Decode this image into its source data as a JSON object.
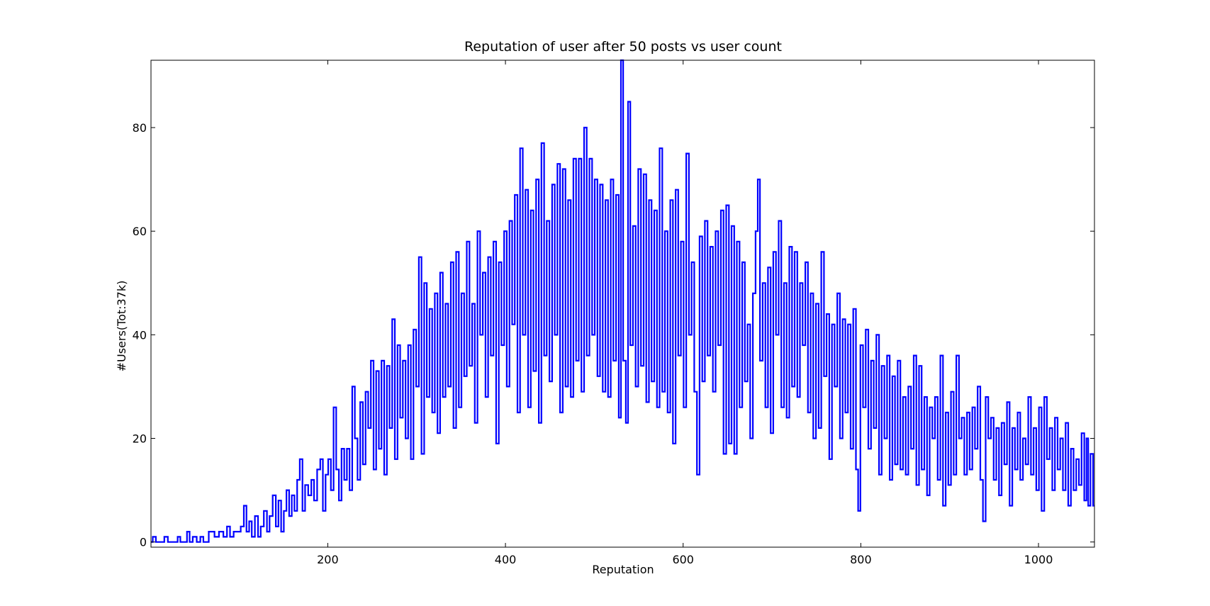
{
  "chart_data": {
    "type": "line",
    "title": "Reputation of user after 50 posts vs user count",
    "xlabel": "Reputation",
    "ylabel": "#Users(Tot:37k)",
    "xlim": [
      1,
      1063
    ],
    "ylim": [
      -1,
      93
    ],
    "xticks": [
      200,
      400,
      600,
      800,
      1000
    ],
    "yticks": [
      0,
      20,
      40,
      60,
      80
    ],
    "grid": false,
    "legend": "none",
    "color": "#0000ff",
    "drawstyle": "steps",
    "x_start": 1,
    "x_step": 1,
    "y_points": [
      [
        1,
        0
      ],
      [
        5,
        1
      ],
      [
        8,
        0
      ],
      [
        14,
        0
      ],
      [
        18,
        1
      ],
      [
        22,
        0
      ],
      [
        30,
        0
      ],
      [
        32,
        1
      ],
      [
        36,
        0
      ],
      [
        40,
        0
      ],
      [
        43,
        2
      ],
      [
        46,
        0
      ],
      [
        50,
        1
      ],
      [
        55,
        0
      ],
      [
        58,
        1
      ],
      [
        62,
        0
      ],
      [
        70,
        2
      ],
      [
        75,
        1
      ],
      [
        80,
        2
      ],
      [
        85,
        1
      ],
      [
        88,
        3
      ],
      [
        92,
        1
      ],
      [
        96,
        2
      ],
      [
        100,
        2
      ],
      [
        104,
        3
      ],
      [
        107,
        7
      ],
      [
        110,
        2
      ],
      [
        113,
        4
      ],
      [
        116,
        1
      ],
      [
        120,
        5
      ],
      [
        123,
        1
      ],
      [
        126,
        3
      ],
      [
        130,
        6
      ],
      [
        133,
        2
      ],
      [
        136,
        5
      ],
      [
        140,
        9
      ],
      [
        143,
        3
      ],
      [
        146,
        8
      ],
      [
        149,
        2
      ],
      [
        152,
        6
      ],
      [
        155,
        10
      ],
      [
        158,
        5
      ],
      [
        161,
        9
      ],
      [
        164,
        6
      ],
      [
        167,
        12
      ],
      [
        170,
        16
      ],
      [
        173,
        6
      ],
      [
        176,
        11
      ],
      [
        180,
        9
      ],
      [
        183,
        12
      ],
      [
        186,
        8
      ],
      [
        190,
        14
      ],
      [
        193,
        16
      ],
      [
        196,
        6
      ],
      [
        199,
        13
      ],
      [
        202,
        16
      ],
      [
        205,
        10
      ],
      [
        208,
        26
      ],
      [
        211,
        14
      ],
      [
        214,
        8
      ],
      [
        217,
        18
      ],
      [
        220,
        12
      ],
      [
        223,
        18
      ],
      [
        226,
        10
      ],
      [
        229,
        30
      ],
      [
        232,
        20
      ],
      [
        235,
        12
      ],
      [
        238,
        27
      ],
      [
        241,
        15
      ],
      [
        244,
        29
      ],
      [
        247,
        22
      ],
      [
        250,
        35
      ],
      [
        253,
        14
      ],
      [
        256,
        33
      ],
      [
        259,
        18
      ],
      [
        262,
        35
      ],
      [
        265,
        13
      ],
      [
        268,
        34
      ],
      [
        271,
        22
      ],
      [
        274,
        43
      ],
      [
        277,
        16
      ],
      [
        280,
        38
      ],
      [
        283,
        24
      ],
      [
        286,
        35
      ],
      [
        289,
        20
      ],
      [
        292,
        38
      ],
      [
        295,
        16
      ],
      [
        298,
        41
      ],
      [
        301,
        30
      ],
      [
        304,
        55
      ],
      [
        307,
        17
      ],
      [
        310,
        50
      ],
      [
        313,
        28
      ],
      [
        316,
        45
      ],
      [
        319,
        25
      ],
      [
        322,
        48
      ],
      [
        325,
        21
      ],
      [
        328,
        52
      ],
      [
        331,
        28
      ],
      [
        334,
        46
      ],
      [
        337,
        30
      ],
      [
        340,
        54
      ],
      [
        343,
        22
      ],
      [
        346,
        56
      ],
      [
        349,
        26
      ],
      [
        352,
        48
      ],
      [
        355,
        32
      ],
      [
        358,
        58
      ],
      [
        361,
        34
      ],
      [
        364,
        46
      ],
      [
        367,
        23
      ],
      [
        370,
        60
      ],
      [
        373,
        40
      ],
      [
        376,
        52
      ],
      [
        379,
        28
      ],
      [
        382,
        55
      ],
      [
        385,
        36
      ],
      [
        388,
        58
      ],
      [
        391,
        19
      ],
      [
        394,
        54
      ],
      [
        397,
        38
      ],
      [
        400,
        60
      ],
      [
        403,
        30
      ],
      [
        406,
        62
      ],
      [
        409,
        42
      ],
      [
        412,
        67
      ],
      [
        415,
        25
      ],
      [
        418,
        76
      ],
      [
        421,
        40
      ],
      [
        424,
        68
      ],
      [
        427,
        26
      ],
      [
        430,
        64
      ],
      [
        433,
        33
      ],
      [
        436,
        70
      ],
      [
        439,
        23
      ],
      [
        442,
        77
      ],
      [
        445,
        36
      ],
      [
        448,
        62
      ],
      [
        451,
        31
      ],
      [
        454,
        69
      ],
      [
        457,
        40
      ],
      [
        460,
        73
      ],
      [
        463,
        25
      ],
      [
        466,
        72
      ],
      [
        469,
        30
      ],
      [
        472,
        66
      ],
      [
        475,
        28
      ],
      [
        478,
        74
      ],
      [
        481,
        35
      ],
      [
        484,
        74
      ],
      [
        487,
        29
      ],
      [
        490,
        80
      ],
      [
        493,
        36
      ],
      [
        496,
        74
      ],
      [
        499,
        40
      ],
      [
        502,
        70
      ],
      [
        505,
        32
      ],
      [
        508,
        69
      ],
      [
        511,
        29
      ],
      [
        514,
        66
      ],
      [
        517,
        28
      ],
      [
        520,
        70
      ],
      [
        523,
        35
      ],
      [
        526,
        67
      ],
      [
        529,
        24
      ],
      [
        531,
        93
      ],
      [
        534,
        35
      ],
      [
        537,
        23
      ],
      [
        539,
        85
      ],
      [
        542,
        38
      ],
      [
        545,
        61
      ],
      [
        548,
        30
      ],
      [
        551,
        72
      ],
      [
        554,
        34
      ],
      [
        557,
        71
      ],
      [
        560,
        27
      ],
      [
        563,
        66
      ],
      [
        566,
        31
      ],
      [
        569,
        64
      ],
      [
        572,
        26
      ],
      [
        575,
        76
      ],
      [
        578,
        29
      ],
      [
        581,
        60
      ],
      [
        584,
        25
      ],
      [
        587,
        66
      ],
      [
        590,
        19
      ],
      [
        593,
        68
      ],
      [
        596,
        36
      ],
      [
        599,
        58
      ],
      [
        602,
        26
      ],
      [
        605,
        75
      ],
      [
        608,
        40
      ],
      [
        611,
        54
      ],
      [
        614,
        29
      ],
      [
        617,
        13
      ],
      [
        620,
        59
      ],
      [
        623,
        31
      ],
      [
        626,
        62
      ],
      [
        629,
        36
      ],
      [
        632,
        57
      ],
      [
        635,
        29
      ],
      [
        638,
        60
      ],
      [
        641,
        38
      ],
      [
        644,
        64
      ],
      [
        647,
        17
      ],
      [
        650,
        65
      ],
      [
        653,
        19
      ],
      [
        656,
        61
      ],
      [
        659,
        17
      ],
      [
        662,
        58
      ],
      [
        665,
        26
      ],
      [
        668,
        54
      ],
      [
        671,
        31
      ],
      [
        674,
        42
      ],
      [
        677,
        20
      ],
      [
        680,
        48
      ],
      [
        683,
        60
      ],
      [
        685,
        70
      ],
      [
        688,
        35
      ],
      [
        691,
        50
      ],
      [
        694,
        26
      ],
      [
        697,
        53
      ],
      [
        700,
        21
      ],
      [
        703,
        56
      ],
      [
        706,
        40
      ],
      [
        709,
        62
      ],
      [
        712,
        26
      ],
      [
        715,
        50
      ],
      [
        718,
        24
      ],
      [
        721,
        57
      ],
      [
        724,
        30
      ],
      [
        727,
        56
      ],
      [
        730,
        28
      ],
      [
        733,
        50
      ],
      [
        736,
        38
      ],
      [
        739,
        54
      ],
      [
        742,
        25
      ],
      [
        745,
        48
      ],
      [
        748,
        20
      ],
      [
        751,
        46
      ],
      [
        754,
        22
      ],
      [
        757,
        56
      ],
      [
        760,
        32
      ],
      [
        763,
        44
      ],
      [
        766,
        16
      ],
      [
        769,
        42
      ],
      [
        772,
        30
      ],
      [
        775,
        48
      ],
      [
        778,
        20
      ],
      [
        781,
        43
      ],
      [
        784,
        25
      ],
      [
        787,
        42
      ],
      [
        790,
        18
      ],
      [
        793,
        45
      ],
      [
        796,
        14
      ],
      [
        798,
        6
      ],
      [
        801,
        38
      ],
      [
        804,
        26
      ],
      [
        807,
        41
      ],
      [
        810,
        18
      ],
      [
        813,
        35
      ],
      [
        816,
        22
      ],
      [
        819,
        40
      ],
      [
        822,
        13
      ],
      [
        825,
        34
      ],
      [
        828,
        20
      ],
      [
        831,
        36
      ],
      [
        834,
        12
      ],
      [
        837,
        32
      ],
      [
        840,
        15
      ],
      [
        843,
        35
      ],
      [
        846,
        14
      ],
      [
        849,
        28
      ],
      [
        852,
        13
      ],
      [
        855,
        30
      ],
      [
        858,
        18
      ],
      [
        861,
        36
      ],
      [
        864,
        11
      ],
      [
        867,
        34
      ],
      [
        870,
        14
      ],
      [
        873,
        28
      ],
      [
        876,
        9
      ],
      [
        879,
        26
      ],
      [
        882,
        20
      ],
      [
        885,
        28
      ],
      [
        888,
        12
      ],
      [
        891,
        36
      ],
      [
        894,
        7
      ],
      [
        897,
        25
      ],
      [
        900,
        11
      ],
      [
        903,
        29
      ],
      [
        906,
        13
      ],
      [
        909,
        36
      ],
      [
        912,
        20
      ],
      [
        915,
        24
      ],
      [
        918,
        13
      ],
      [
        921,
        25
      ],
      [
        924,
        14
      ],
      [
        927,
        26
      ],
      [
        930,
        18
      ],
      [
        933,
        30
      ],
      [
        936,
        12
      ],
      [
        939,
        4
      ],
      [
        942,
        28
      ],
      [
        945,
        20
      ],
      [
        948,
        24
      ],
      [
        951,
        12
      ],
      [
        954,
        22
      ],
      [
        957,
        9
      ],
      [
        960,
        23
      ],
      [
        963,
        15
      ],
      [
        966,
        27
      ],
      [
        969,
        7
      ],
      [
        972,
        22
      ],
      [
        975,
        14
      ],
      [
        978,
        25
      ],
      [
        981,
        12
      ],
      [
        984,
        20
      ],
      [
        987,
        15
      ],
      [
        990,
        28
      ],
      [
        993,
        13
      ],
      [
        996,
        22
      ],
      [
        999,
        10
      ],
      [
        1002,
        26
      ],
      [
        1005,
        6
      ],
      [
        1008,
        28
      ],
      [
        1011,
        16
      ],
      [
        1014,
        22
      ],
      [
        1017,
        10
      ],
      [
        1020,
        24
      ],
      [
        1023,
        14
      ],
      [
        1026,
        20
      ],
      [
        1029,
        10
      ],
      [
        1032,
        23
      ],
      [
        1035,
        7
      ],
      [
        1038,
        18
      ],
      [
        1041,
        10
      ],
      [
        1044,
        16
      ],
      [
        1047,
        11
      ],
      [
        1050,
        21
      ],
      [
        1053,
        8
      ],
      [
        1055,
        20
      ],
      [
        1057,
        7
      ],
      [
        1060,
        17
      ],
      [
        1063,
        7
      ]
    ]
  }
}
